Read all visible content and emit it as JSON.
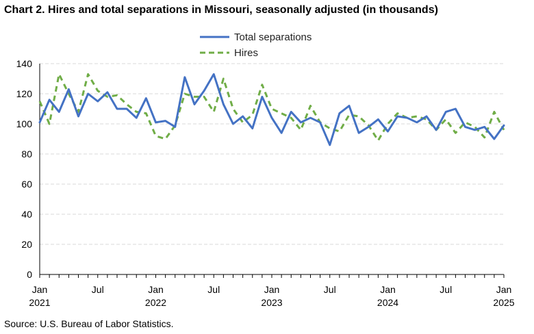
{
  "title": "Chart 2. Hires and total separations in Missouri, seasonally adjusted (in thousands)",
  "source": "Source: U.S. Bureau of Labor Statistics.",
  "colors": {
    "total_separations": "#4472c4",
    "hires": "#70ad47",
    "grid": "#d9d9d9",
    "axis": "#000000"
  },
  "chart_data": {
    "type": "line",
    "title": "Chart 2. Hires and total separations in Missouri, seasonally adjusted (in thousands)",
    "xlabel": "",
    "ylabel": "",
    "ylim": [
      0,
      140
    ],
    "yticks": [
      0,
      20,
      40,
      60,
      80,
      100,
      120,
      140
    ],
    "grid": true,
    "legend_position": "top-center",
    "x_start": "2021-01",
    "x_end": "2025-01",
    "x_ticks": [
      {
        "month": "Jan",
        "year": "2021"
      },
      {
        "month": "Jul",
        "year": ""
      },
      {
        "month": "Jan",
        "year": "2022"
      },
      {
        "month": "Jul",
        "year": ""
      },
      {
        "month": "Jan",
        "year": "2023"
      },
      {
        "month": "Jul",
        "year": ""
      },
      {
        "month": "Jan",
        "year": "2024"
      },
      {
        "month": "Jul",
        "year": ""
      },
      {
        "month": "Jan",
        "year": "2025"
      }
    ],
    "x": [
      "2021-01",
      "2021-02",
      "2021-03",
      "2021-04",
      "2021-05",
      "2021-06",
      "2021-07",
      "2021-08",
      "2021-09",
      "2021-10",
      "2021-11",
      "2021-12",
      "2022-01",
      "2022-02",
      "2022-03",
      "2022-04",
      "2022-05",
      "2022-06",
      "2022-07",
      "2022-08",
      "2022-09",
      "2022-10",
      "2022-11",
      "2022-12",
      "2023-01",
      "2023-02",
      "2023-03",
      "2023-04",
      "2023-05",
      "2023-06",
      "2023-07",
      "2023-08",
      "2023-09",
      "2023-10",
      "2023-11",
      "2023-12",
      "2024-01",
      "2024-02",
      "2024-03",
      "2024-04",
      "2024-05",
      "2024-06",
      "2024-07",
      "2024-08",
      "2024-09",
      "2024-10",
      "2024-11",
      "2024-12",
      "2025-01"
    ],
    "series": [
      {
        "name": "Total separations",
        "color": "#4472c4",
        "style": "solid",
        "values": [
          101,
          116,
          108,
          123,
          105,
          120,
          115,
          121,
          110,
          110,
          104,
          117,
          101,
          102,
          98,
          131,
          113,
          122,
          133,
          113,
          100,
          105,
          97,
          118,
          104,
          94,
          108,
          101,
          104,
          101,
          86,
          107,
          112,
          94,
          98,
          103,
          95,
          105,
          104,
          101,
          105,
          96,
          108,
          110,
          98,
          96,
          98,
          90,
          99
        ]
      },
      {
        "name": "Hires",
        "color": "#70ad47",
        "style": "dashed",
        "values": [
          115,
          100,
          133,
          120,
          108,
          133,
          122,
          118,
          119,
          113,
          108,
          107,
          92,
          90,
          99,
          120,
          118,
          118,
          108,
          130,
          110,
          101,
          106,
          126,
          110,
          107,
          104,
          96,
          112,
          101,
          97,
          95,
          106,
          105,
          99,
          89,
          100,
          107,
          104,
          105,
          103,
          96,
          103,
          94,
          101,
          98,
          91,
          108,
          96
        ]
      }
    ]
  }
}
